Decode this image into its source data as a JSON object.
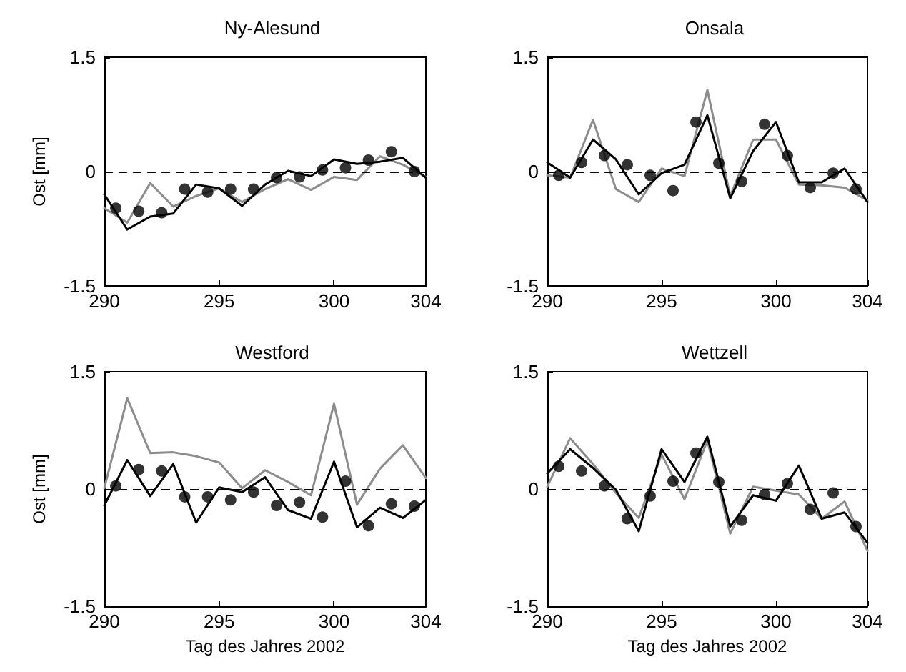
{
  "chart_data": [
    {
      "type": "line",
      "title": "Ny-Alesund",
      "ylabel": "Ost [mm]",
      "x": [
        290,
        291,
        292,
        293,
        294,
        295,
        296,
        297,
        298,
        299,
        300,
        301,
        302,
        303,
        304
      ],
      "xlim": [
        290,
        304
      ],
      "xticks": [
        290,
        295,
        300,
        304
      ],
      "ylim": [
        -1.5,
        1.5
      ],
      "yticks": [
        -1.5,
        0,
        1.5
      ],
      "grid": false,
      "ref_lines": [
        {
          "axis": "y",
          "value": 0,
          "color": "#000000",
          "line_style": "dashed"
        }
      ],
      "series": [
        {
          "color": "#8c8c8c",
          "marker": "none",
          "values": [
            -0.48,
            -0.67,
            -0.15,
            -0.46,
            -0.32,
            -0.22,
            -0.4,
            -0.23,
            -0.1,
            -0.24,
            -0.07,
            -0.11,
            0.2,
            0.09,
            -0.07
          ]
        },
        {
          "color": "#000000",
          "marker": "none",
          "values": [
            -0.3,
            -0.76,
            -0.59,
            -0.55,
            -0.17,
            -0.22,
            -0.45,
            -0.17,
            0.01,
            -0.06,
            0.16,
            0.1,
            0.13,
            0.18,
            -0.08
          ]
        },
        {
          "type": "scatter",
          "color": "#000000",
          "marker": "circle",
          "x": [
            290.5,
            291.5,
            292.5,
            293.5,
            294.5,
            295.5,
            296.5,
            297.5,
            298.5,
            299.5,
            300.5,
            301.5,
            302.5,
            303.5
          ],
          "values": [
            -0.48,
            -0.52,
            -0.54,
            -0.23,
            -0.27,
            -0.23,
            -0.23,
            -0.08,
            -0.07,
            0.02,
            0.05,
            0.15,
            0.26,
            0.0
          ]
        }
      ]
    },
    {
      "type": "line",
      "title": "Onsala",
      "x": [
        290,
        291,
        292,
        293,
        294,
        295,
        296,
        297,
        298,
        299,
        300,
        301,
        302,
        303,
        304
      ],
      "xlim": [
        290,
        304
      ],
      "xticks": [
        290,
        295,
        300,
        304
      ],
      "ylim": [
        -1.5,
        1.5
      ],
      "yticks": [
        -1.5,
        0,
        1.5
      ],
      "grid": false,
      "ref_lines": [
        {
          "axis": "y",
          "value": 0,
          "color": "#000000",
          "line_style": "dashed"
        }
      ],
      "series": [
        {
          "color": "#8c8c8c",
          "marker": "none",
          "values": [
            -0.05,
            -0.08,
            0.68,
            -0.23,
            -0.4,
            0.04,
            -0.06,
            1.07,
            -0.32,
            0.42,
            0.42,
            -0.17,
            -0.18,
            -0.21,
            -0.38
          ]
        },
        {
          "color": "#000000",
          "marker": "none",
          "values": [
            0.12,
            -0.08,
            0.42,
            0.16,
            -0.3,
            -0.02,
            0.09,
            0.74,
            -0.35,
            0.27,
            0.65,
            -0.14,
            -0.14,
            0.04,
            -0.4
          ]
        },
        {
          "type": "scatter",
          "color": "#000000",
          "marker": "circle",
          "x": [
            290.5,
            291.5,
            292.5,
            293.5,
            294.5,
            295.5,
            296.5,
            297.5,
            298.5,
            299.5,
            300.5,
            301.5,
            302.5,
            303.5
          ],
          "values": [
            -0.05,
            0.12,
            0.21,
            0.09,
            -0.05,
            -0.25,
            0.65,
            0.11,
            -0.13,
            0.62,
            0.21,
            -0.21,
            -0.02,
            -0.23
          ]
        }
      ]
    },
    {
      "type": "line",
      "title": "Westford",
      "ylabel": "Ost [mm]",
      "xlabel": "Tag des Jahres 2002",
      "x": [
        290,
        291,
        292,
        293,
        294,
        295,
        296,
        297,
        298,
        299,
        300,
        301,
        302,
        303,
        304
      ],
      "xlim": [
        290,
        304
      ],
      "xticks": [
        290,
        295,
        300,
        304
      ],
      "ylim": [
        -1.5,
        1.5
      ],
      "yticks": [
        -1.5,
        0,
        1.5
      ],
      "grid": false,
      "ref_lines": [
        {
          "axis": "y",
          "value": 0,
          "color": "#000000",
          "line_style": "dashed"
        }
      ],
      "series": [
        {
          "color": "#8c8c8c",
          "marker": "none",
          "values": [
            0.01,
            1.16,
            0.46,
            0.47,
            0.42,
            0.34,
            0.01,
            0.24,
            0.09,
            -0.08,
            1.09,
            -0.2,
            0.26,
            0.56,
            0.14
          ]
        },
        {
          "color": "#000000",
          "marker": "none",
          "values": [
            -0.21,
            0.37,
            -0.09,
            0.32,
            -0.43,
            0.02,
            -0.04,
            0.15,
            -0.27,
            -0.38,
            0.35,
            -0.49,
            -0.24,
            -0.37,
            -0.14
          ]
        },
        {
          "type": "scatter",
          "color": "#000000",
          "marker": "circle",
          "x": [
            290.5,
            291.5,
            292.5,
            293.5,
            294.5,
            295.5,
            296.5,
            297.5,
            298.5,
            299.5,
            300.5,
            301.5,
            302.5,
            303.5
          ],
          "values": [
            0.04,
            0.25,
            0.23,
            -0.1,
            -0.1,
            -0.14,
            -0.04,
            -0.21,
            -0.17,
            -0.36,
            0.1,
            -0.47,
            -0.19,
            -0.22
          ]
        }
      ]
    },
    {
      "type": "line",
      "title": "Wettzell",
      "xlabel": "Tag des Jahres 2002",
      "x": [
        290,
        291,
        292,
        293,
        294,
        295,
        296,
        297,
        298,
        299,
        300,
        301,
        302,
        303,
        304
      ],
      "xlim": [
        290,
        304
      ],
      "xticks": [
        290,
        295,
        300,
        304
      ],
      "ylim": [
        -1.5,
        1.5
      ],
      "yticks": [
        -1.5,
        0,
        1.5
      ],
      "grid": false,
      "ref_lines": [
        {
          "axis": "y",
          "value": 0,
          "color": "#000000",
          "line_style": "dashed"
        }
      ],
      "series": [
        {
          "color": "#8c8c8c",
          "marker": "none",
          "values": [
            0.03,
            0.65,
            0.32,
            -0.05,
            -0.37,
            0.44,
            -0.13,
            0.62,
            -0.57,
            0.03,
            -0.02,
            -0.07,
            -0.38,
            -0.16,
            -0.79
          ]
        },
        {
          "color": "#000000",
          "marker": "none",
          "values": [
            0.2,
            0.51,
            0.27,
            -0.01,
            -0.54,
            0.51,
            0.09,
            0.67,
            -0.48,
            -0.08,
            -0.15,
            0.3,
            -0.38,
            -0.3,
            -0.69
          ]
        },
        {
          "type": "scatter",
          "color": "#000000",
          "marker": "circle",
          "x": [
            290.5,
            291.5,
            292.5,
            293.5,
            294.5,
            295.5,
            296.5,
            297.5,
            298.5,
            299.5,
            300.5,
            301.5,
            302.5,
            303.5
          ],
          "values": [
            0.29,
            0.23,
            0.04,
            -0.38,
            -0.09,
            0.1,
            0.46,
            0.09,
            -0.4,
            -0.07,
            0.07,
            -0.26,
            -0.05,
            -0.48
          ]
        }
      ]
    }
  ]
}
